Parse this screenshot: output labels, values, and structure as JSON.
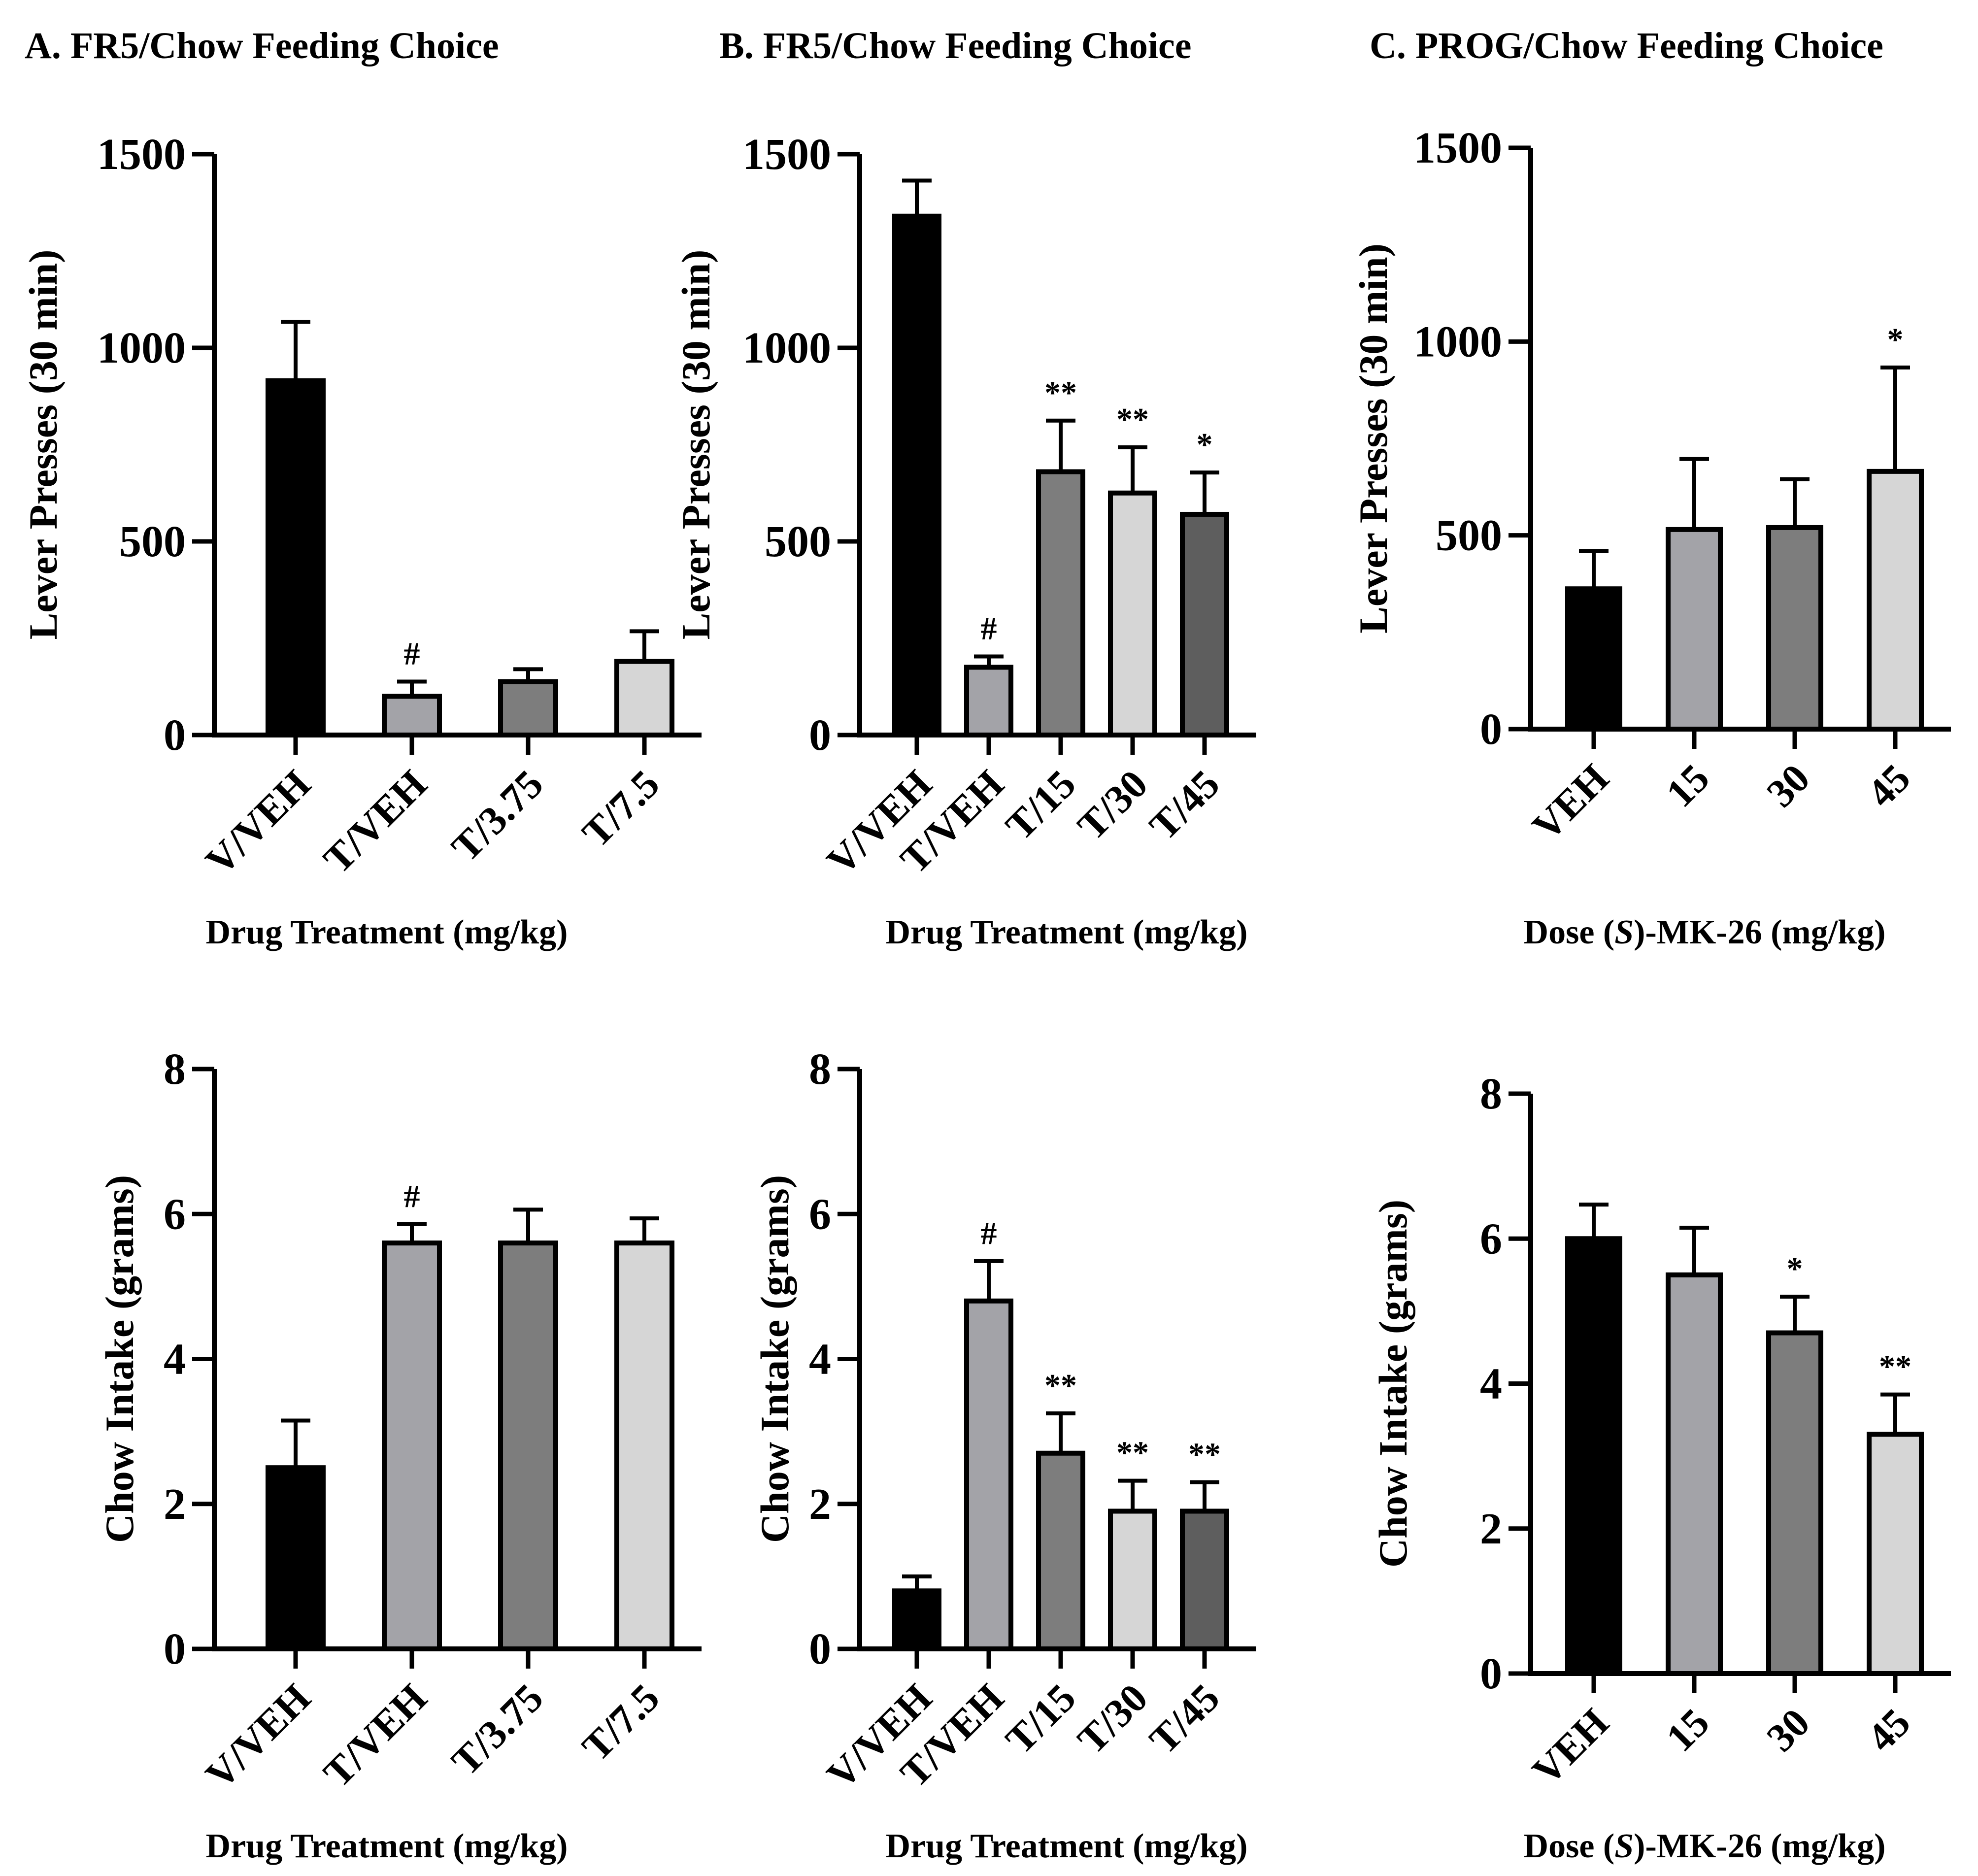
{
  "chart_data": [
    {
      "id": "A-top",
      "type": "bar",
      "title": "A. FR5/Chow Feeding Choice",
      "xlabel": "Drug Treatment (mg/kg)",
      "ylabel": "Lever  Presses  (30 min)",
      "ylim": [
        0,
        1500
      ],
      "ticks": [
        0,
        500,
        1000,
        1500
      ],
      "categories": [
        "V/VEH",
        "T/VEH",
        "T/3.75",
        "T/7.5"
      ],
      "values": [
        915,
        100,
        138,
        190
      ],
      "errors": [
        152,
        38,
        32,
        78
      ],
      "annotations": [
        "",
        "#",
        "",
        ""
      ],
      "colors": [
        "#000000",
        "#a3a3a8",
        "#7d7d7d",
        "#d6d6d6"
      ]
    },
    {
      "id": "B-top",
      "type": "bar",
      "title": "B. FR5/Chow Feeding Choice",
      "xlabel": "Drug Treatment (mg/kg)",
      "ylabel": "Lever  Presses  (30 min)",
      "ylim": [
        0,
        1500
      ],
      "ticks": [
        0,
        500,
        1000,
        1500
      ],
      "categories": [
        "V/VEH",
        "T/VEH",
        "T/15",
        "T/30",
        "T/45"
      ],
      "values": [
        1340,
        175,
        680,
        625,
        570
      ],
      "errors": [
        92,
        28,
        132,
        118,
        108
      ],
      "annotations": [
        "",
        "#",
        "**",
        "**",
        "*"
      ],
      "colors": [
        "#000000",
        "#a3a3a8",
        "#7d7d7d",
        "#d6d6d6",
        "#5e5e5e"
      ]
    },
    {
      "id": "C-top",
      "type": "bar",
      "title": "C. PROG/Chow Feeding Choice",
      "xlabel": "Dose (S)-MK-26 (mg/kg)",
      "xlabel_parts": [
        "Dose (",
        "S",
        ")-MK-26 (mg/kg)"
      ],
      "ylabel": "Lever  Presses  (30 min)",
      "ylim": [
        0,
        1500
      ],
      "ticks": [
        0,
        500,
        1000,
        1500
      ],
      "categories": [
        "VEH",
        "15",
        "30",
        "45"
      ],
      "values": [
        362,
        515,
        520,
        665
      ],
      "errors": [
        98,
        182,
        125,
        268
      ],
      "annotations": [
        "",
        "",
        "",
        "*"
      ],
      "colors": [
        "#000000",
        "#a3a3a8",
        "#7d7d7d",
        "#d6d6d6"
      ]
    },
    {
      "id": "A-bottom",
      "type": "bar",
      "title": "",
      "xlabel": "Drug Treatment (mg/kg)",
      "ylabel": "Chow Intake (grams)",
      "ylim": [
        0,
        8
      ],
      "ticks": [
        0,
        2,
        4,
        6,
        8
      ],
      "categories": [
        "V/VEH",
        "T/VEH",
        "T/3.75",
        "T/7.5"
      ],
      "values": [
        2.5,
        5.6,
        5.6,
        5.6
      ],
      "errors": [
        0.65,
        0.26,
        0.46,
        0.34
      ],
      "annotations": [
        "",
        "#",
        "",
        ""
      ],
      "colors": [
        "#000000",
        "#a3a3a8",
        "#7d7d7d",
        "#d6d6d6"
      ]
    },
    {
      "id": "B-bottom",
      "type": "bar",
      "title": "",
      "xlabel": "Drug Treatment (mg/kg)",
      "ylabel": "Chow Intake (grams)",
      "ylim": [
        0,
        8
      ],
      "ticks": [
        0,
        2,
        4,
        6,
        8
      ],
      "categories": [
        "V/VEH",
        "T/VEH",
        "T/15",
        "T/30",
        "T/45"
      ],
      "values": [
        0.8,
        4.8,
        2.7,
        1.9,
        1.9
      ],
      "errors": [
        0.2,
        0.55,
        0.55,
        0.42,
        0.4
      ],
      "annotations": [
        "",
        "#",
        "**",
        "**",
        "**"
      ],
      "colors": [
        "#000000",
        "#a3a3a8",
        "#7d7d7d",
        "#d6d6d6",
        "#5e5e5e"
      ]
    },
    {
      "id": "C-bottom",
      "type": "bar",
      "title": "",
      "xlabel": "Dose (S)-MK-26 (mg/kg)",
      "xlabel_parts": [
        "Dose (",
        "S",
        ")-MK-26 (mg/kg)"
      ],
      "ylabel": "Chow Intake (grams)",
      "ylim": [
        0,
        8
      ],
      "ticks": [
        0,
        2,
        4,
        6,
        8
      ],
      "categories": [
        "VEH",
        "15",
        "30",
        "45"
      ],
      "values": [
        6.0,
        5.5,
        4.7,
        3.3
      ],
      "errors": [
        0.47,
        0.65,
        0.5,
        0.55
      ],
      "annotations": [
        "",
        "",
        "*",
        "**"
      ],
      "colors": [
        "#000000",
        "#a3a3a8",
        "#7d7d7d",
        "#d6d6d6"
      ]
    }
  ]
}
